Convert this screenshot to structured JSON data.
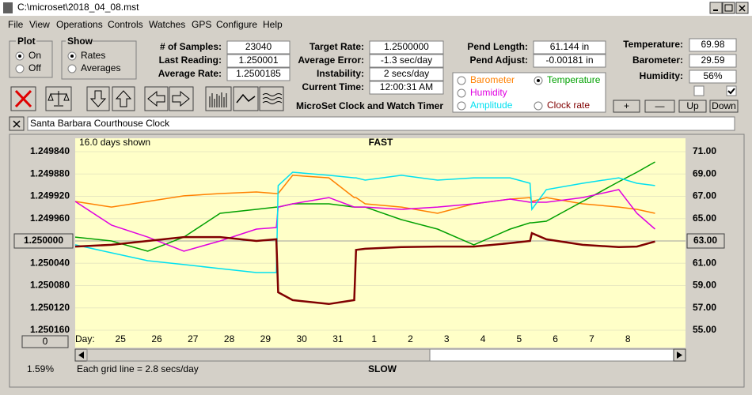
{
  "window": {
    "title": "C:\\microset\\2018_04_08.mst"
  },
  "menu": [
    "File",
    "View",
    "Operations",
    "Controls",
    "Watches",
    "GPS",
    "Configure",
    "Help"
  ],
  "plot": {
    "title": "Plot",
    "options": [
      "On",
      "Off"
    ],
    "selected": 0
  },
  "show": {
    "title": "Show",
    "options": [
      "Rates",
      "Averages"
    ],
    "selected": 0
  },
  "stats_left": [
    {
      "label": "# of Samples:",
      "value": "23040"
    },
    {
      "label": "Last Reading:",
      "value": "1.250001"
    },
    {
      "label": "Average Rate:",
      "value": "1.2500185"
    }
  ],
  "stats_mid": [
    {
      "label": "Target Rate:",
      "value": "1.2500000"
    },
    {
      "label": "Average Error:",
      "value": "-1.3 sec/day"
    },
    {
      "label": "Instability:",
      "value": "2 secs/day"
    },
    {
      "label": "Current Time:",
      "value": "12:00:31 AM"
    }
  ],
  "app_name": "MicroSet Clock and Watch Timer",
  "pendulum": [
    {
      "label": "Pend Length:",
      "value": "61.144 in"
    },
    {
      "label": "Pend Adjust:",
      "value": "-0.00181 in"
    }
  ],
  "environment": [
    {
      "label": "Temperature:",
      "value": "69.98"
    },
    {
      "label": "Barometer:",
      "value": "29.59"
    },
    {
      "label": "Humidity:",
      "value": "56%"
    }
  ],
  "checkboxes": [
    false,
    true
  ],
  "buttons": [
    "+",
    "—",
    "Up",
    "Down"
  ],
  "clock_name": "Santa Barbara Courthouse Clock",
  "chart": {
    "type": "line",
    "days_shown": "16.0 days shown",
    "fast_label": "FAST",
    "slow_label": "SLOW",
    "grid_note": "Each grid line = 2.8 secs/day",
    "x_label": "Day:",
    "scroll_value": "0",
    "status": "1.59%",
    "selected_series": 1,
    "x": [
      0,
      1,
      2,
      3,
      4,
      5,
      5.55,
      5.6,
      6,
      7,
      7.7,
      7.75,
      8,
      9,
      10,
      11,
      12,
      12.55,
      12.6,
      13,
      14,
      15,
      15.5,
      16
    ],
    "xlim": [
      0,
      16.6
    ],
    "xticks": [
      {
        "value": 1.25,
        "label": "25"
      },
      {
        "value": 2.25,
        "label": "26"
      },
      {
        "value": 3.25,
        "label": "27"
      },
      {
        "value": 4.25,
        "label": "28"
      },
      {
        "value": 5.25,
        "label": "29"
      },
      {
        "value": 6.25,
        "label": "30"
      },
      {
        "value": 7.25,
        "label": "31"
      },
      {
        "value": 8.25,
        "label": "1"
      },
      {
        "value": 9.25,
        "label": "2"
      },
      {
        "value": 10.25,
        "label": "3"
      },
      {
        "value": 11.25,
        "label": "4"
      },
      {
        "value": 12.25,
        "label": "5"
      },
      {
        "value": 13.25,
        "label": "6"
      },
      {
        "value": 14.25,
        "label": "7"
      },
      {
        "value": 15.25,
        "label": "8"
      }
    ],
    "ylim": [
      1.25016,
      1.24984
    ],
    "yticks": [
      {
        "value": 1.24984,
        "label": "1.249840"
      },
      {
        "value": 1.24988,
        "label": "1.249880"
      },
      {
        "value": 1.24992,
        "label": "1.249920"
      },
      {
        "value": 1.24996,
        "label": "1.249960"
      },
      {
        "value": 1.25004,
        "label": "1.250040"
      },
      {
        "value": 1.25008,
        "label": "1.250080"
      },
      {
        "value": 1.25012,
        "label": "1.250120"
      },
      {
        "value": 1.25016,
        "label": "1.250160"
      }
    ],
    "center": {
      "value": 1.25,
      "label": "1.250000"
    },
    "y2lim": [
      55,
      71
    ],
    "y2ticks": [
      {
        "value": 71,
        "label": "71.00"
      },
      {
        "value": 69,
        "label": "69.00"
      },
      {
        "value": 67,
        "label": "67.00"
      },
      {
        "value": 65,
        "label": "65.00"
      },
      {
        "value": 61,
        "label": "61.00"
      },
      {
        "value": 59,
        "label": "59.00"
      },
      {
        "value": 57,
        "label": "57.00"
      },
      {
        "value": 55,
        "label": "55.00"
      }
    ],
    "center2": {
      "value": 63,
      "label": "63.00"
    },
    "series": [
      {
        "name": "Barometer",
        "color": "#ff8000",
        "axis": "y2",
        "values": [
          66.54,
          66.04,
          66.54,
          67.04,
          67.25,
          67.39,
          67.25,
          67.25,
          68.88,
          68.66,
          66.89,
          66.89,
          66.33,
          66.04,
          65.48,
          66.33,
          66.75,
          66.89,
          66.54,
          66.89,
          66.33,
          66.04,
          65.83,
          65.48
        ]
      },
      {
        "name": "Temperature",
        "color": "#00a000",
        "axis": "y2",
        "values": [
          63.35,
          63.0,
          62.08,
          63.35,
          65.48,
          65.83,
          66.04,
          66.04,
          66.33,
          66.33,
          66.04,
          66.04,
          66.04,
          64.91,
          64.06,
          62.65,
          64.06,
          64.63,
          64.63,
          64.77,
          66.54,
          68.31,
          69.16,
          70.08
        ]
      },
      {
        "name": "Humidity",
        "color": "#e000e0",
        "axis": "y2",
        "values": [
          66.54,
          64.42,
          63.35,
          62.08,
          63.0,
          64.06,
          64.2,
          66.04,
          66.33,
          66.89,
          66.04,
          66.04,
          66.04,
          65.83,
          66.04,
          66.33,
          66.75,
          66.47,
          66.47,
          66.47,
          66.89,
          67.6,
          65.48,
          64.06
        ]
      },
      {
        "name": "Amplitude",
        "color": "#00e0f0",
        "axis": "y2",
        "values": [
          62.65,
          61.94,
          61.23,
          60.88,
          60.52,
          60.17,
          60.17,
          67.96,
          69.16,
          68.88,
          68.66,
          68.66,
          68.45,
          68.88,
          68.45,
          68.66,
          68.66,
          68.17,
          65.83,
          67.6,
          68.17,
          68.66,
          68.17,
          67.96
        ]
      },
      {
        "name": "Clock rate",
        "color": "#800000",
        "axis": "y",
        "values": [
          1.25001,
          1.250007,
          1.25,
          1.249993,
          1.249993,
          1.25,
          1.249997,
          1.250092,
          1.250106,
          1.250113,
          1.250106,
          1.250016,
          1.250014,
          1.250011,
          1.25001,
          1.25001,
          1.250004,
          1.25,
          1.249986,
          1.249997,
          1.250007,
          1.250011,
          1.25001,
          1.250001
        ]
      }
    ]
  }
}
